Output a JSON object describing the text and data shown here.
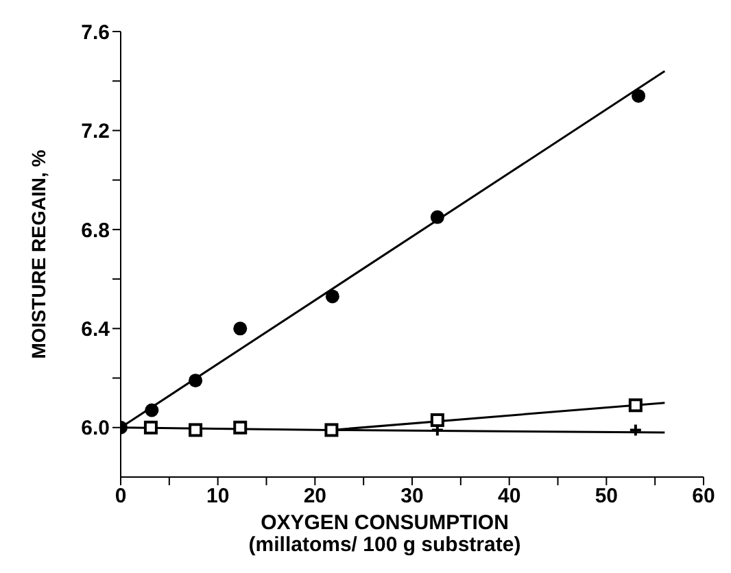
{
  "chart_data": {
    "type": "scatter",
    "xlabel": "OXYGEN  CONSUMPTION\n(millatoms/ 100 g substrate)",
    "ylabel": "MOISTURE  REGAIN, %",
    "xlim": [
      0,
      60
    ],
    "ylim": [
      5.8,
      7.6
    ],
    "xticks": [
      0,
      {
        "value": 5,
        "label": null
      },
      10,
      {
        "value": 15,
        "label": null
      },
      20,
      {
        "value": 25,
        "label": null
      },
      30,
      {
        "value": 35,
        "label": null
      },
      40,
      {
        "value": 45,
        "label": null
      },
      50,
      {
        "value": 55,
        "label": null
      },
      60
    ],
    "yticks": [
      {
        "value": 6.0,
        "label": "6.0"
      },
      {
        "value": 6.2,
        "label": null
      },
      6.4,
      {
        "value": 6.6,
        "label": null
      },
      6.8,
      {
        "value": 7.0,
        "label": null
      },
      7.2,
      {
        "value": 7.4,
        "label": null
      },
      7.6
    ],
    "series": [
      {
        "marker": "circle",
        "color": "#000000",
        "x": [
          0,
          3.2,
          7.7,
          12.3,
          21.8,
          32.6,
          53.3
        ],
        "values": [
          6.0,
          6.07,
          6.19,
          6.4,
          6.53,
          6.85,
          7.34
        ]
      },
      {
        "type": "line",
        "marker": "none",
        "color": "#000000",
        "x": [
          0,
          56
        ],
        "values": [
          6.0,
          7.44
        ]
      },
      {
        "marker": "square",
        "color": "#000000",
        "x": [
          3.1,
          7.7,
          12.3,
          21.7,
          32.6,
          53.0
        ],
        "values": [
          6.0,
          5.99,
          6.0,
          5.99,
          6.03,
          6.09
        ]
      },
      {
        "type": "line",
        "marker": "none",
        "color": "#000000",
        "x": [
          0,
          21.7,
          56
        ],
        "values": [
          6.0,
          5.99,
          6.1
        ]
      },
      {
        "marker": "cross",
        "color": "#000000",
        "x": [
          32.6,
          53.0
        ],
        "values": [
          5.99,
          5.99
        ]
      },
      {
        "type": "line",
        "marker": "none",
        "color": "#000000",
        "x": [
          21.7,
          56
        ],
        "values": [
          5.99,
          5.98
        ]
      }
    ]
  }
}
